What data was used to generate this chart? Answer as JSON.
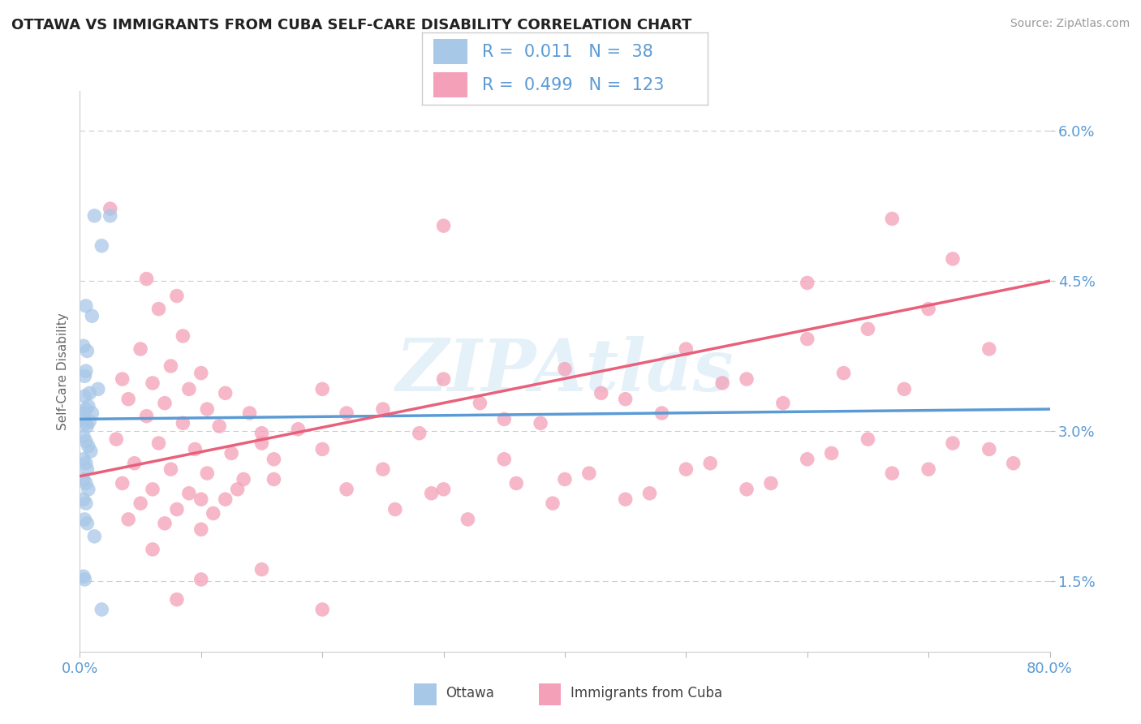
{
  "title": "OTTAWA VS IMMIGRANTS FROM CUBA SELF-CARE DISABILITY CORRELATION CHART",
  "source": "Source: ZipAtlas.com",
  "ylabel": "Self-Care Disability",
  "xmin": 0.0,
  "xmax": 80.0,
  "ymin": 0.8,
  "ymax": 6.4,
  "yticks": [
    1.5,
    3.0,
    4.5,
    6.0
  ],
  "ytick_labels": [
    "1.5%",
    "3.0%",
    "4.5%",
    "6.0%"
  ],
  "watermark": "ZIPAtlas",
  "ottawa_color": "#a8c8e8",
  "cuba_color": "#f4a0b8",
  "ottawa_line_color": "#5b9bd5",
  "cuba_line_color": "#e8607a",
  "axis_color": "#5b9bd5",
  "legend_text_color": "#5b9bd5",
  "ottawa_line_x0": 0.0,
  "ottawa_line_y0": 3.12,
  "ottawa_line_x1": 80.0,
  "ottawa_line_y1": 3.22,
  "cuba_line_x0": 0.0,
  "cuba_line_y0": 2.55,
  "cuba_line_x1": 80.0,
  "cuba_line_y1": 4.5,
  "ottawa_scatter": [
    [
      1.2,
      5.15
    ],
    [
      2.5,
      5.15
    ],
    [
      1.8,
      4.85
    ],
    [
      0.5,
      4.25
    ],
    [
      1.0,
      4.15
    ],
    [
      0.3,
      3.85
    ],
    [
      0.6,
      3.8
    ],
    [
      0.4,
      3.55
    ],
    [
      0.5,
      3.6
    ],
    [
      0.4,
      3.35
    ],
    [
      0.8,
      3.38
    ],
    [
      1.5,
      3.42
    ],
    [
      0.3,
      3.18
    ],
    [
      0.5,
      3.22
    ],
    [
      0.7,
      3.25
    ],
    [
      1.0,
      3.18
    ],
    [
      0.3,
      3.12
    ],
    [
      0.5,
      3.08
    ],
    [
      0.6,
      3.05
    ],
    [
      0.8,
      3.1
    ],
    [
      0.3,
      2.95
    ],
    [
      0.5,
      2.9
    ],
    [
      0.7,
      2.85
    ],
    [
      0.9,
      2.8
    ],
    [
      0.3,
      2.72
    ],
    [
      0.5,
      2.68
    ],
    [
      0.6,
      2.62
    ],
    [
      0.3,
      2.52
    ],
    [
      0.5,
      2.48
    ],
    [
      0.7,
      2.42
    ],
    [
      0.3,
      2.32
    ],
    [
      0.5,
      2.28
    ],
    [
      0.4,
      2.12
    ],
    [
      0.6,
      2.08
    ],
    [
      1.2,
      1.95
    ],
    [
      0.4,
      1.52
    ],
    [
      1.8,
      1.22
    ],
    [
      0.3,
      1.55
    ]
  ],
  "cuba_scatter": [
    [
      2.5,
      5.22
    ],
    [
      30.0,
      5.05
    ],
    [
      67.0,
      5.12
    ],
    [
      5.5,
      4.52
    ],
    [
      8.0,
      4.35
    ],
    [
      6.5,
      4.22
    ],
    [
      8.5,
      3.95
    ],
    [
      72.0,
      4.72
    ],
    [
      60.0,
      4.48
    ],
    [
      5.0,
      3.82
    ],
    [
      7.5,
      3.65
    ],
    [
      10.0,
      3.58
    ],
    [
      3.5,
      3.52
    ],
    [
      6.0,
      3.48
    ],
    [
      9.0,
      3.42
    ],
    [
      12.0,
      3.38
    ],
    [
      4.0,
      3.32
    ],
    [
      7.0,
      3.28
    ],
    [
      10.5,
      3.22
    ],
    [
      14.0,
      3.18
    ],
    [
      5.5,
      3.15
    ],
    [
      8.5,
      3.08
    ],
    [
      11.5,
      3.05
    ],
    [
      15.0,
      2.98
    ],
    [
      3.0,
      2.92
    ],
    [
      6.5,
      2.88
    ],
    [
      9.5,
      2.82
    ],
    [
      12.5,
      2.78
    ],
    [
      16.0,
      2.72
    ],
    [
      4.5,
      2.68
    ],
    [
      7.5,
      2.62
    ],
    [
      10.5,
      2.58
    ],
    [
      13.5,
      2.52
    ],
    [
      3.5,
      2.48
    ],
    [
      6.0,
      2.42
    ],
    [
      9.0,
      2.38
    ],
    [
      12.0,
      2.32
    ],
    [
      5.0,
      2.28
    ],
    [
      8.0,
      2.22
    ],
    [
      11.0,
      2.18
    ],
    [
      4.0,
      2.12
    ],
    [
      7.0,
      2.08
    ],
    [
      10.0,
      2.02
    ],
    [
      20.0,
      3.42
    ],
    [
      25.0,
      3.22
    ],
    [
      30.0,
      3.52
    ],
    [
      35.0,
      3.12
    ],
    [
      40.0,
      3.62
    ],
    [
      45.0,
      3.32
    ],
    [
      50.0,
      3.82
    ],
    [
      55.0,
      3.52
    ],
    [
      60.0,
      3.92
    ],
    [
      65.0,
      4.02
    ],
    [
      70.0,
      4.22
    ],
    [
      75.0,
      3.82
    ],
    [
      20.0,
      2.82
    ],
    [
      25.0,
      2.62
    ],
    [
      30.0,
      2.42
    ],
    [
      35.0,
      2.72
    ],
    [
      40.0,
      2.52
    ],
    [
      45.0,
      2.32
    ],
    [
      50.0,
      2.62
    ],
    [
      55.0,
      2.42
    ],
    [
      60.0,
      2.72
    ],
    [
      65.0,
      2.92
    ],
    [
      70.0,
      2.62
    ],
    [
      75.0,
      2.82
    ],
    [
      15.0,
      2.88
    ],
    [
      18.0,
      3.02
    ],
    [
      22.0,
      3.18
    ],
    [
      28.0,
      2.98
    ],
    [
      33.0,
      3.28
    ],
    [
      38.0,
      3.08
    ],
    [
      43.0,
      3.38
    ],
    [
      48.0,
      3.18
    ],
    [
      53.0,
      3.48
    ],
    [
      58.0,
      3.28
    ],
    [
      63.0,
      3.58
    ],
    [
      68.0,
      3.42
    ],
    [
      10.0,
      2.32
    ],
    [
      13.0,
      2.42
    ],
    [
      16.0,
      2.52
    ],
    [
      22.0,
      2.42
    ],
    [
      26.0,
      2.22
    ],
    [
      29.0,
      2.38
    ],
    [
      32.0,
      2.12
    ],
    [
      36.0,
      2.48
    ],
    [
      39.0,
      2.28
    ],
    [
      42.0,
      2.58
    ],
    [
      47.0,
      2.38
    ],
    [
      52.0,
      2.68
    ],
    [
      57.0,
      2.48
    ],
    [
      62.0,
      2.78
    ],
    [
      67.0,
      2.58
    ],
    [
      72.0,
      2.88
    ],
    [
      77.0,
      2.68
    ],
    [
      8.0,
      1.32
    ],
    [
      15.0,
      1.62
    ],
    [
      20.0,
      1.22
    ],
    [
      6.0,
      1.82
    ],
    [
      10.0,
      1.52
    ]
  ]
}
